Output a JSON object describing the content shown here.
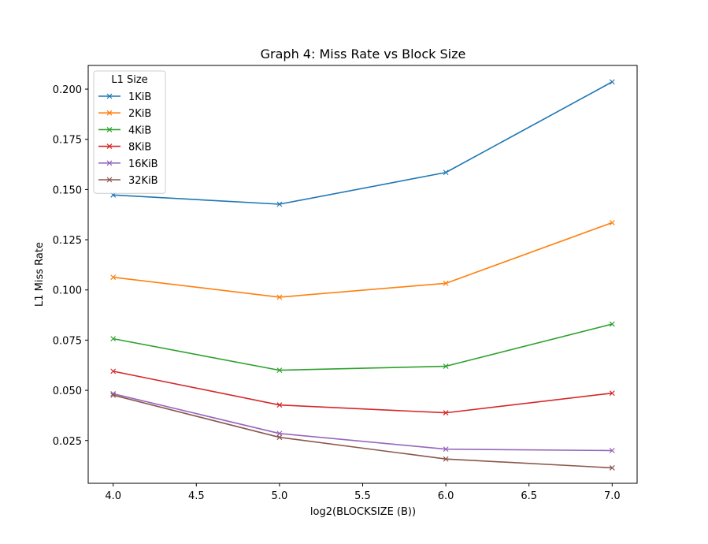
{
  "chart_data": {
    "type": "line",
    "title": "Graph 4: Miss Rate vs Block Size",
    "xlabel": "log2(BLOCKSIZE (B))",
    "ylabel": "L1 Miss Rate",
    "x": [
      4.0,
      5.0,
      6.0,
      7.0
    ],
    "xlim": [
      3.85,
      7.15
    ],
    "ylim": [
      0.0037,
      0.2118
    ],
    "x_ticks": [
      4.0,
      4.5,
      5.0,
      5.5,
      6.0,
      6.5,
      7.0
    ],
    "x_tick_labels": [
      "4.0",
      "4.5",
      "5.0",
      "5.5",
      "6.0",
      "6.5",
      "7.0"
    ],
    "y_ticks": [
      0.025,
      0.05,
      0.075,
      0.1,
      0.125,
      0.15,
      0.175,
      0.2
    ],
    "y_tick_labels": [
      "0.025",
      "0.050",
      "0.075",
      "0.100",
      "0.125",
      "0.150",
      "0.175",
      "0.200"
    ],
    "marker": "x",
    "grid": false,
    "legend": {
      "title": "L1 Size",
      "placement": "top-left"
    },
    "series": [
      {
        "name": "1KiB",
        "color": "#1f77b4",
        "values": [
          0.1473,
          0.1427,
          0.1585,
          0.2036
        ]
      },
      {
        "name": "2KiB",
        "color": "#ff7f0e",
        "values": [
          0.1063,
          0.0964,
          0.1033,
          0.1335
        ]
      },
      {
        "name": "4KiB",
        "color": "#2ca02c",
        "values": [
          0.0757,
          0.06,
          0.062,
          0.083
        ]
      },
      {
        "name": "8KiB",
        "color": "#d62728",
        "values": [
          0.0595,
          0.0427,
          0.0388,
          0.0486
        ]
      },
      {
        "name": "16KiB",
        "color": "#9467bd",
        "values": [
          0.0483,
          0.0285,
          0.0207,
          0.02
        ]
      },
      {
        "name": "32KiB",
        "color": "#8c564b",
        "values": [
          0.0476,
          0.0266,
          0.0158,
          0.0114
        ]
      }
    ]
  }
}
